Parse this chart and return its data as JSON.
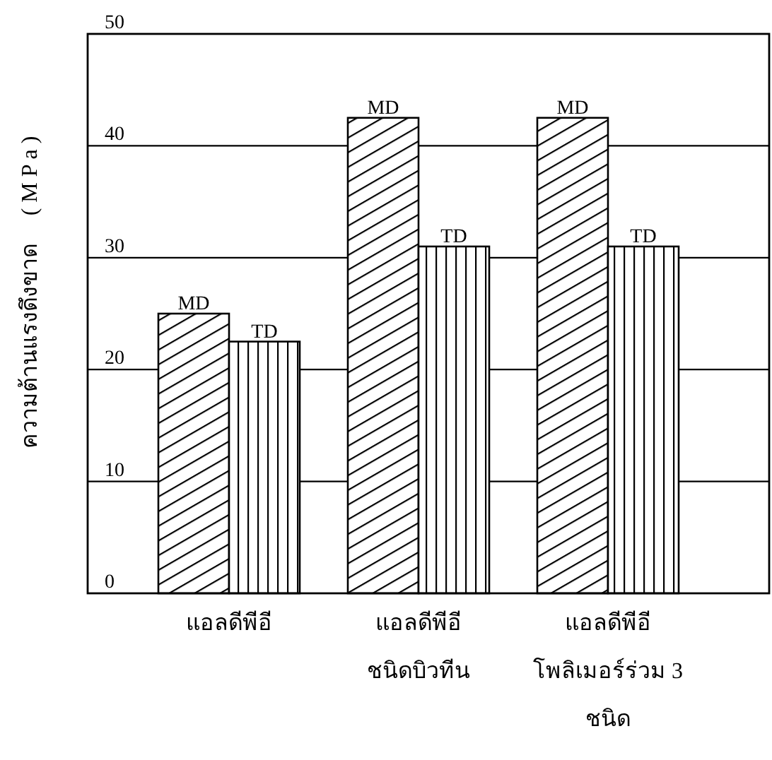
{
  "chart_data": {
    "type": "bar",
    "categories": [
      "แอลดีพีอี",
      "แอลดีพีอี ชนิดบิวทีน",
      "แอลดีพีอี โพลิเมอร์ร่วม 3 ชนิด"
    ],
    "series": [
      {
        "name": "MD",
        "color": "#000000",
        "values": [
          25,
          42.5,
          42.5
        ]
      },
      {
        "name": "TD",
        "color": "#000000",
        "values": [
          22.5,
          31,
          31
        ]
      }
    ],
    "ylabel": "ความต้านแรงดึงขาด     ( M P a )",
    "ylim": [
      0,
      50
    ],
    "yticks": [
      0,
      10,
      20,
      30,
      40,
      50
    ],
    "grid": "y"
  }
}
